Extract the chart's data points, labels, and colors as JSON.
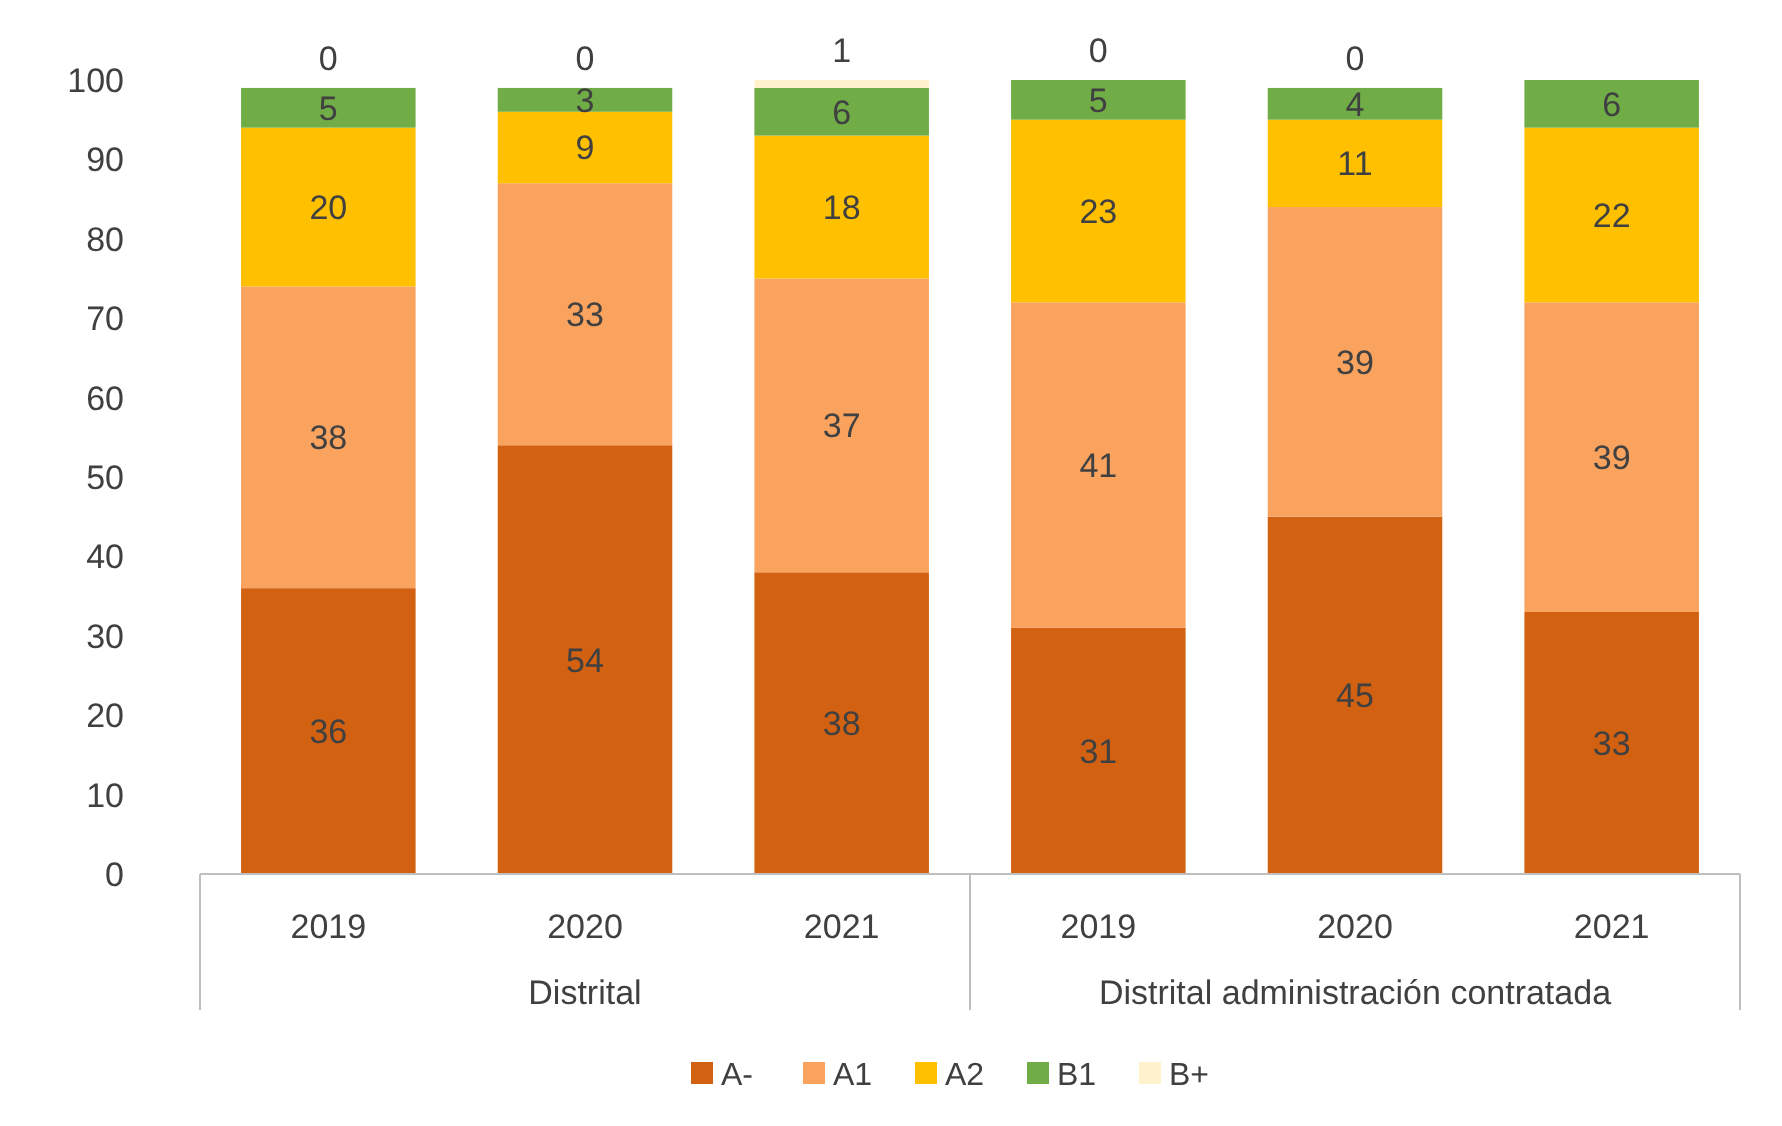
{
  "chart_data": {
    "type": "bar",
    "stacked": true,
    "categories": [
      "2019",
      "2020",
      "2021",
      "2019",
      "2020",
      "2021"
    ],
    "annotations": [
      "Distrital",
      "Distrital administración contratada"
    ],
    "ylim": [
      0,
      100
    ],
    "yticks": [
      0,
      10,
      20,
      30,
      40,
      50,
      60,
      70,
      80,
      90,
      100
    ],
    "grid": false,
    "legend": "bottom",
    "series": [
      {
        "name": "A-",
        "color": "#d26112",
        "values": [
          36,
          54,
          38,
          31,
          45,
          33
        ],
        "value_labels": [
          "36",
          "54",
          "38",
          "31",
          "45",
          "33"
        ]
      },
      {
        "name": "A1",
        "color": "#f9a35f",
        "values": [
          38,
          33,
          37,
          41,
          39,
          39
        ],
        "value_labels": [
          "38",
          "33",
          "37",
          "41",
          "39",
          "39"
        ]
      },
      {
        "name": "A2",
        "color": "#ffc000",
        "values": [
          20,
          9,
          18,
          23,
          11,
          22
        ],
        "value_labels": [
          "20",
          "9",
          "18",
          "23",
          "11",
          "22"
        ]
      },
      {
        "name": "B1",
        "color": "#70ad47",
        "values": [
          5,
          3,
          6,
          5,
          4,
          6
        ],
        "value_labels": [
          "5",
          "3",
          "6",
          "5",
          "4",
          "6"
        ]
      },
      {
        "name": "B+",
        "color": "#fff2cc",
        "values": [
          0,
          0,
          1,
          0,
          0,
          null
        ],
        "value_labels": [
          "0",
          "0",
          "1",
          "0",
          "0",
          null
        ]
      }
    ]
  }
}
